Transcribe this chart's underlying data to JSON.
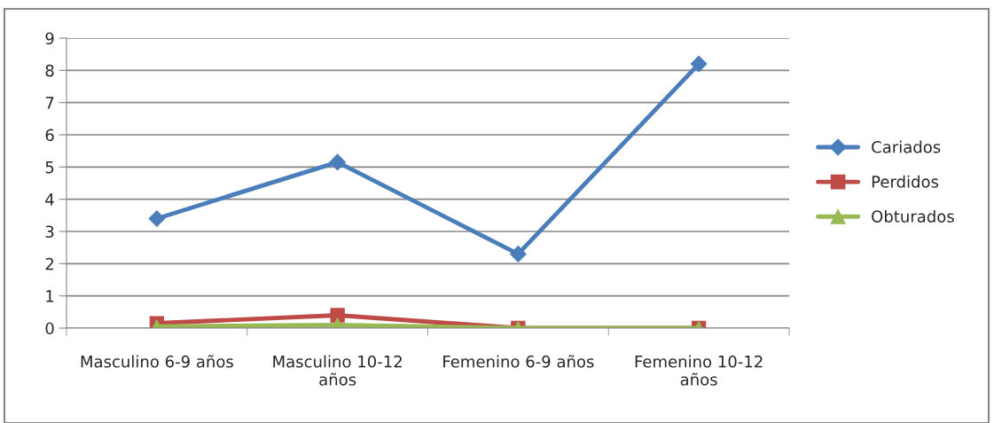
{
  "chart_data": {
    "type": "line",
    "categories": [
      "Masculino 6-9 años",
      "Masculino 10-12 años",
      "Femenino 6-9 años",
      "Femenino 10-12 años"
    ],
    "series": [
      {
        "name": "Cariados",
        "color": "#4a7ebb",
        "marker": "diamond",
        "values": [
          3.4,
          5.15,
          2.3,
          8.2
        ]
      },
      {
        "name": "Perdidos",
        "color": "#be4b48",
        "marker": "square",
        "values": [
          0.15,
          0.4,
          0,
          0
        ]
      },
      {
        "name": "Obturados",
        "color": "#98b954",
        "marker": "triangle",
        "values": [
          0.05,
          0.1,
          0,
          0
        ]
      }
    ],
    "ylim": [
      0,
      9
    ],
    "yticks": [
      0,
      1,
      2,
      3,
      4,
      5,
      6,
      7,
      8,
      9
    ],
    "grid": "y",
    "legend": "right"
  }
}
